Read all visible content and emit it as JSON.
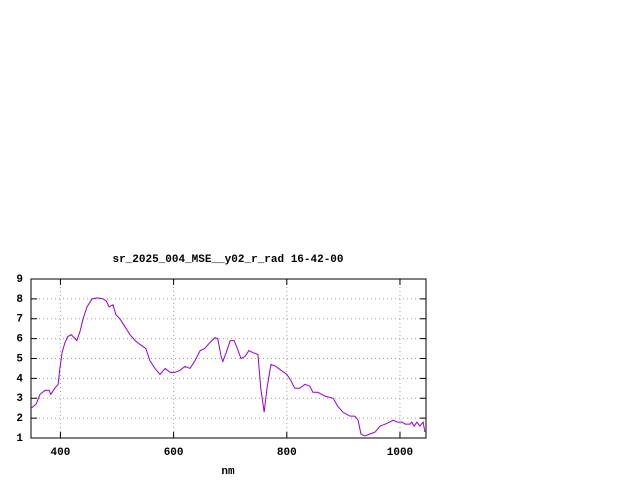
{
  "chart_data": {
    "type": "line",
    "title": "sr_2025_004_MSE__y02_r_rad 16-42-00",
    "x_label": "nm",
    "x": [
      348,
      357,
      364,
      373,
      380,
      383,
      390,
      396,
      399,
      403,
      408,
      413,
      419,
      426,
      429,
      435,
      440,
      447,
      456,
      465,
      475,
      481,
      486,
      493,
      498,
      505,
      514,
      523,
      532,
      541,
      551,
      558,
      567,
      576,
      585,
      594,
      602,
      611,
      620,
      629,
      638,
      647,
      655,
      664,
      673,
      678,
      684,
      687,
      693,
      700,
      707,
      714,
      719,
      726,
      733,
      740,
      749,
      754,
      760,
      765,
      772,
      781,
      790,
      800,
      807,
      814,
      823,
      832,
      841,
      846,
      855,
      868,
      882,
      890,
      899,
      912,
      920,
      926,
      931,
      938,
      947,
      956,
      965,
      974,
      982,
      988,
      995,
      1004,
      1009,
      1018,
      1021,
      1025,
      1030,
      1035,
      1041,
      1044
    ],
    "values": [
      2.5,
      2.7,
      3.2,
      3.4,
      3.4,
      3.2,
      3.5,
      3.7,
      4.5,
      5.3,
      5.8,
      6.1,
      6.2,
      6.0,
      5.9,
      6.4,
      7.0,
      7.6,
      8.0,
      8.05,
      8.0,
      7.9,
      7.6,
      7.7,
      7.2,
      7.0,
      6.6,
      6.2,
      5.9,
      5.7,
      5.5,
      4.9,
      4.5,
      4.2,
      4.5,
      4.3,
      4.3,
      4.4,
      4.6,
      4.5,
      4.9,
      5.4,
      5.5,
      5.8,
      6.05,
      6.0,
      5.1,
      4.85,
      5.3,
      5.9,
      5.9,
      5.4,
      5.0,
      5.1,
      5.4,
      5.3,
      5.2,
      3.5,
      2.3,
      3.5,
      4.7,
      4.6,
      4.4,
      4.2,
      3.9,
      3.5,
      3.5,
      3.7,
      3.6,
      3.3,
      3.3,
      3.1,
      3.0,
      2.6,
      2.3,
      2.1,
      2.1,
      1.9,
      1.2,
      1.1,
      1.2,
      1.3,
      1.6,
      1.7,
      1.8,
      1.9,
      1.8,
      1.8,
      1.7,
      1.7,
      1.8,
      1.6,
      1.8,
      1.6,
      1.8,
      1.3
    ],
    "color": "#9400d3",
    "xlim": [
      348,
      1046
    ],
    "ylim": [
      1,
      9
    ],
    "xticks": [
      400,
      600,
      800,
      1000
    ],
    "yticks": [
      1,
      2,
      3,
      4,
      5,
      6,
      7,
      8,
      9
    ],
    "grid": true
  }
}
